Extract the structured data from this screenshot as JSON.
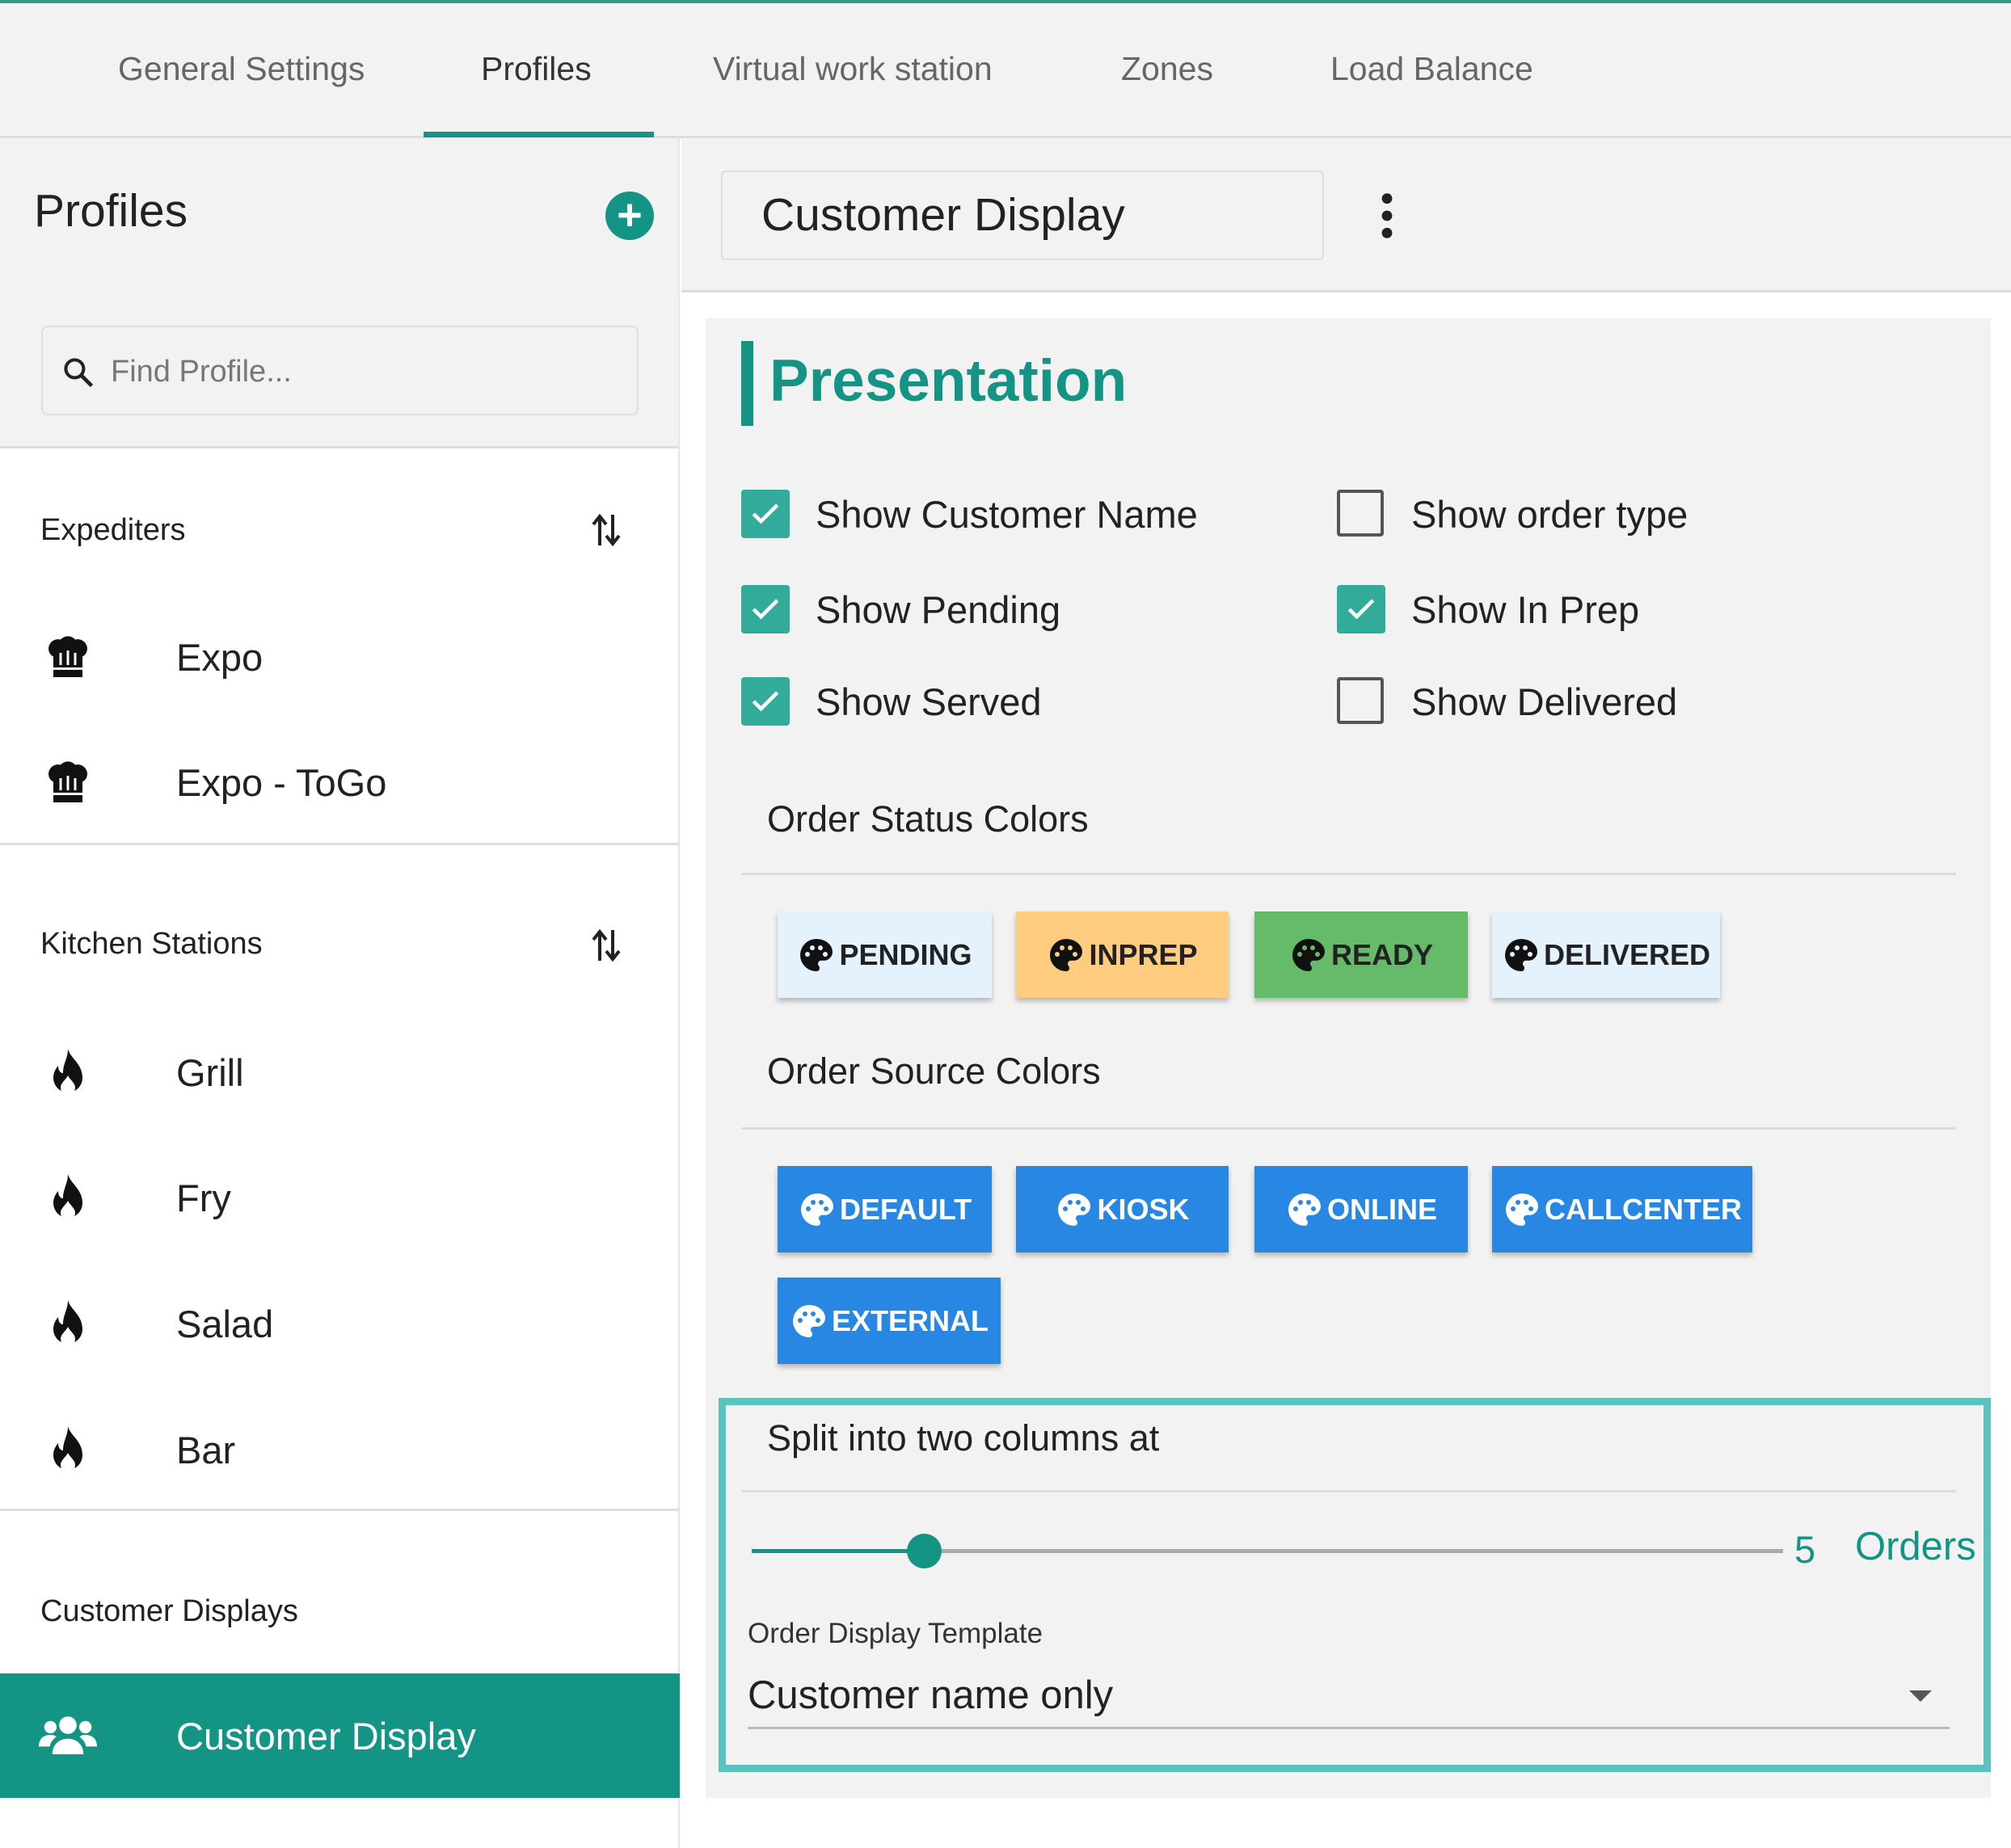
{
  "tabs": [
    {
      "label": "General Settings"
    },
    {
      "label": "Profiles",
      "active": true
    },
    {
      "label": "Virtual work station"
    },
    {
      "label": "Zones"
    },
    {
      "label": "Load Balance"
    }
  ],
  "sidebar": {
    "title": "Profiles",
    "add_icon": "plus-circle-icon",
    "search_placeholder": "Find Profile...",
    "groups": [
      {
        "label": "Expediters",
        "items": [
          {
            "label": "Expo",
            "icon": "chef-hat-icon"
          },
          {
            "label": "Expo - ToGo",
            "icon": "chef-hat-icon"
          }
        ]
      },
      {
        "label": "Kitchen Stations",
        "items": [
          {
            "label": "Grill",
            "icon": "fire-icon"
          },
          {
            "label": "Fry",
            "icon": "fire-icon"
          },
          {
            "label": "Salad",
            "icon": "fire-icon"
          },
          {
            "label": "Bar",
            "icon": "fire-icon"
          }
        ]
      },
      {
        "label": "Customer Displays",
        "items": [
          {
            "label": "Customer Display",
            "icon": "users-icon",
            "selected": true
          }
        ]
      }
    ]
  },
  "main": {
    "profile_name": "Customer Display",
    "section_title": "Presentation",
    "checkboxes": [
      {
        "label": "Show Customer Name",
        "checked": true
      },
      {
        "label": "Show order type",
        "checked": false
      },
      {
        "label": "Show Pending",
        "checked": true
      },
      {
        "label": "Show In Prep",
        "checked": true
      },
      {
        "label": "Show Served",
        "checked": true
      },
      {
        "label": "Show Delivered",
        "checked": false
      }
    ],
    "status_colors_title": "Order Status Colors",
    "status_colors": [
      {
        "label": "PENDING",
        "color": "#e3f2fd"
      },
      {
        "label": "INPREP",
        "color": "#ffcc80"
      },
      {
        "label": "READY",
        "color": "#66bb6a"
      },
      {
        "label": "DELIVERED",
        "color": "#e3f2fd"
      }
    ],
    "source_colors_title": "Order Source Colors",
    "source_colors": [
      {
        "label": "DEFAULT",
        "color": "#2787e3"
      },
      {
        "label": "KIOSK",
        "color": "#2787e3"
      },
      {
        "label": "ONLINE",
        "color": "#2787e3"
      },
      {
        "label": "CALLCENTER",
        "color": "#2787e3"
      },
      {
        "label": "EXTERNAL",
        "color": "#2787e3"
      }
    ],
    "split_label": "Split into two columns at",
    "split_value": "5",
    "split_unit": "Orders",
    "template_label": "Order Display Template",
    "template_value": "Customer name only"
  },
  "colors": {
    "accent": "#149484",
    "highlight": "#5bc2c0"
  }
}
